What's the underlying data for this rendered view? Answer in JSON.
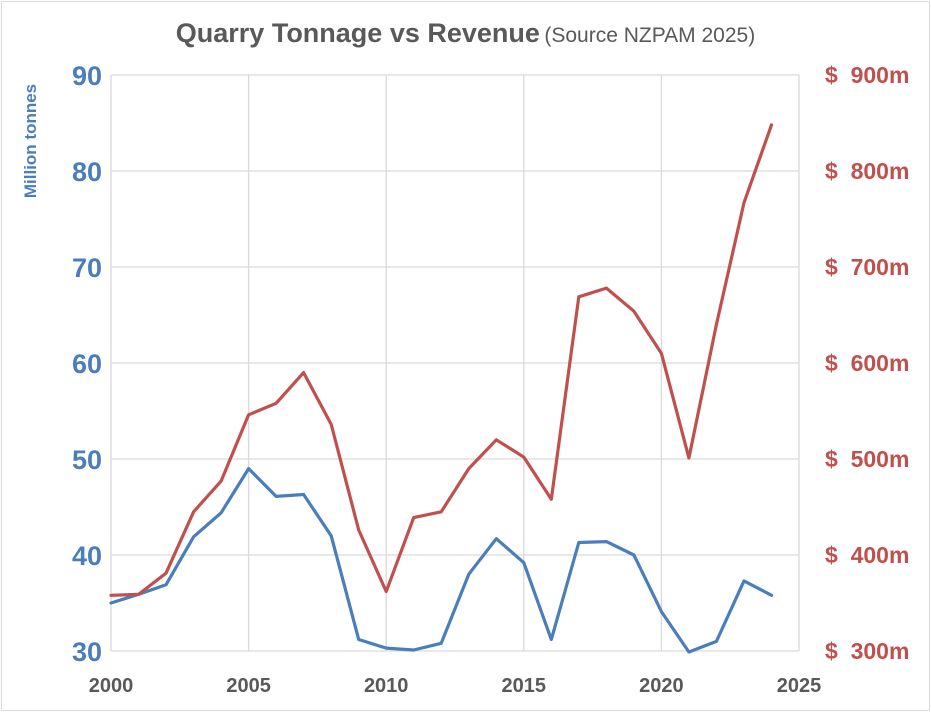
{
  "chart_data": {
    "type": "line",
    "title": "Quarry Tonnage vs Revenue",
    "subtitle": "(Source NZPAM 2025)",
    "xlabel": "",
    "ylabel": "Million tonnes",
    "ylabel_right": "",
    "x": [
      2000,
      2001,
      2002,
      2003,
      2004,
      2005,
      2006,
      2007,
      2008,
      2009,
      2010,
      2011,
      2012,
      2013,
      2014,
      2015,
      2016,
      2017,
      2018,
      2019,
      2020,
      2021,
      2022,
      2023,
      2024
    ],
    "xlim": [
      2000,
      2025
    ],
    "x_ticks": [
      2000,
      2005,
      2010,
      2015,
      2020,
      2025
    ],
    "x_tick_labels": [
      "2000",
      "2005",
      "2010",
      "2015",
      "2020",
      "2025"
    ],
    "ylim": [
      30,
      90
    ],
    "y_ticks": [
      30,
      40,
      50,
      60,
      70,
      80,
      90
    ],
    "y_tick_labels": [
      "30",
      "40",
      "50",
      "60",
      "70",
      "80",
      "90"
    ],
    "ylim_right": [
      300,
      900
    ],
    "y_ticks_right": [
      300,
      400,
      500,
      600,
      700,
      800,
      900
    ],
    "y_tick_labels_right": [
      "$  300m",
      "$  400m",
      "$  500m",
      "$  600m",
      "$  700m",
      "$  800m",
      "$  900m"
    ],
    "grid": true,
    "legend": "none",
    "series": [
      {
        "name": "Tonnage (Million tonnes)",
        "axis": "left",
        "color": "#4a7ebb",
        "values": [
          35.0,
          35.9,
          36.9,
          41.9,
          44.4,
          49.0,
          46.1,
          46.3,
          42.0,
          31.2,
          30.3,
          30.1,
          30.8,
          38.0,
          41.7,
          39.2,
          31.2,
          41.3,
          41.4,
          40.0,
          34.1,
          29.9,
          31.0,
          37.3,
          35.8
        ]
      },
      {
        "name": "Revenue ($m)",
        "axis": "right",
        "color": "#c0504d",
        "values": [
          358,
          359,
          381,
          445,
          477,
          546,
          558,
          590,
          536,
          426,
          362,
          439,
          445,
          490,
          520,
          502,
          458,
          669,
          678,
          654,
          610,
          501,
          640,
          767,
          848
        ]
      }
    ]
  }
}
